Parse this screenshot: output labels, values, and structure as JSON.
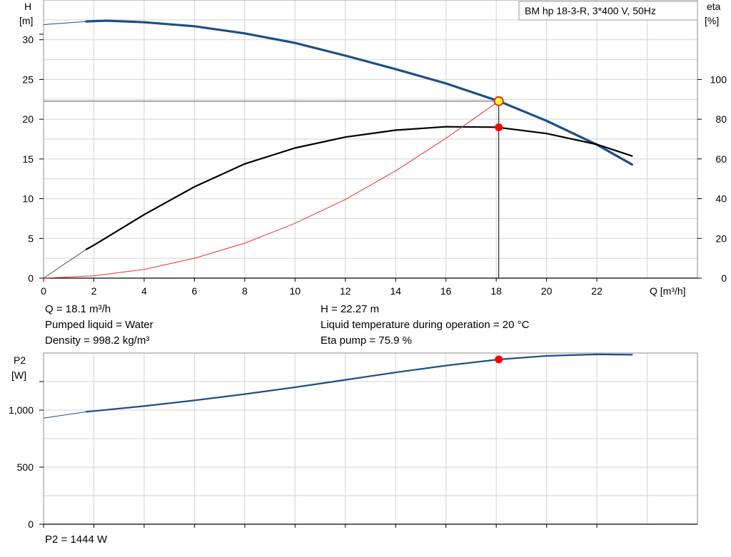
{
  "title_box": "BM hp  18-3-R, 3*400 V, 50Hz",
  "chart_data": [
    {
      "type": "line",
      "name": "pump_curve",
      "x_axis": {
        "label": "Q [m³/h]",
        "range": [
          0,
          26
        ],
        "ticks": [
          0,
          2,
          4,
          6,
          8,
          10,
          12,
          14,
          16,
          18,
          20,
          22
        ]
      },
      "y_left": {
        "label_top": "H",
        "label_unit": "[m]",
        "range": [
          0,
          35
        ],
        "ticks": [
          0,
          5,
          10,
          15,
          20,
          25,
          30
        ]
      },
      "y_right": {
        "label_top": "eta",
        "label_unit": "[%]",
        "range": [
          0,
          140
        ],
        "ticks": [
          0,
          20,
          40,
          60,
          80,
          100
        ]
      },
      "grid": true,
      "series": [
        {
          "axis": "H",
          "color": "#1d4f86",
          "solid_from": 1.7,
          "x": [
            0,
            1.7,
            2.5,
            4,
            6,
            8,
            10,
            12,
            14,
            16,
            18.1,
            20,
            22,
            23.4
          ],
          "y": [
            31.9,
            32.3,
            32.4,
            32.2,
            31.7,
            30.8,
            29.6,
            28.0,
            26.3,
            24.5,
            22.27,
            19.8,
            16.8,
            14.3
          ]
        },
        {
          "axis": "eta",
          "color": "#000000",
          "solid_from": 1.7,
          "x": [
            0,
            1.7,
            2,
            4,
            6,
            8,
            10,
            12,
            14,
            16,
            18,
            20,
            22,
            23.4
          ],
          "y": [
            0,
            14.5,
            16.6,
            32,
            46,
            57.5,
            65.5,
            71,
            74.5,
            76.2,
            76.0,
            72.8,
            67.3,
            61.5
          ]
        },
        {
          "axis": "H",
          "color": "#e83030",
          "style": "system_curve",
          "x": [
            0,
            2,
            4,
            6,
            8,
            10,
            12,
            14,
            16,
            18.1
          ],
          "y": [
            0,
            0.3,
            1.1,
            2.5,
            4.4,
            6.9,
            9.9,
            13.5,
            17.6,
            22.27
          ]
        }
      ],
      "operating_point": {
        "Q": 18.1,
        "H": 22.27,
        "eta": 75.9
      },
      "info_left": [
        "Q = 18.1 m³/h",
        "Pumped liquid = Water",
        "Density = 998.2 kg/m³"
      ],
      "info_right": [
        "H = 22.27 m",
        "Liquid temperature during operation = 20 °C",
        "Eta pump = 75.9 %"
      ]
    },
    {
      "type": "line",
      "name": "power_curve",
      "x_axis": {
        "range": [
          0,
          26
        ],
        "ticks": [
          0,
          2,
          4,
          6,
          8,
          10,
          12,
          14,
          16,
          18,
          20,
          22
        ]
      },
      "y_left": {
        "label_top": "P2",
        "label_unit": "[W]",
        "range": [
          0,
          1500
        ],
        "ticks": [
          0,
          500,
          1000
        ],
        "tick_labels": [
          "0",
          "500",
          "1,000"
        ]
      },
      "grid": true,
      "series": [
        {
          "axis": "P2",
          "color": "#1d4f86",
          "solid_from": 1.7,
          "x": [
            0,
            1.7,
            4,
            6,
            8,
            10,
            12,
            14,
            16,
            18.1,
            20,
            22,
            23.4
          ],
          "y": [
            930,
            985,
            1035,
            1085,
            1140,
            1200,
            1265,
            1330,
            1390,
            1444,
            1475,
            1488,
            1485
          ]
        }
      ],
      "operating_point": {
        "Q": 18.1,
        "P2": 1444
      },
      "info": "P2 = 1444 W"
    }
  ]
}
